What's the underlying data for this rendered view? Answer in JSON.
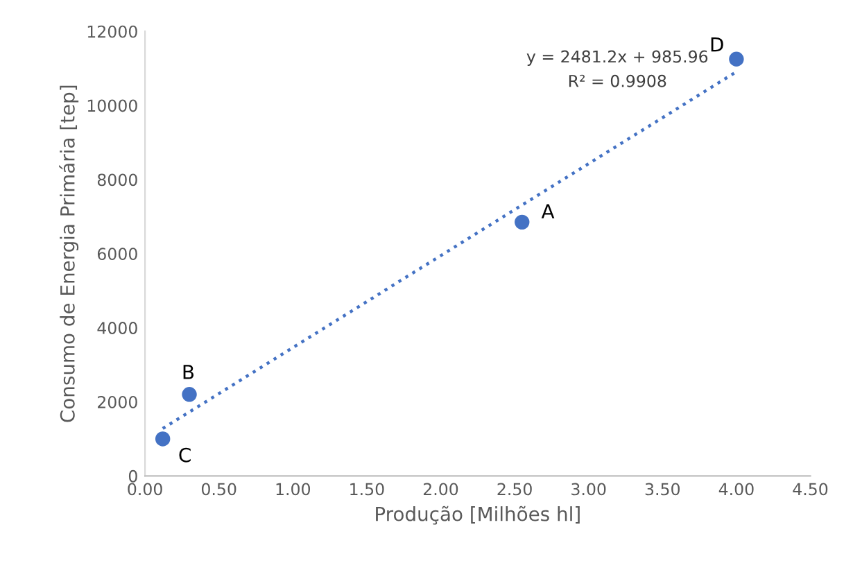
{
  "chart_data": {
    "type": "scatter",
    "xlabel": "Produção [Milhões hl]",
    "ylabel": "Consumo de Energia Primária [tep]",
    "xlim": [
      0,
      4.5
    ],
    "ylim": [
      0,
      12000
    ],
    "xticks": [
      {
        "value": 0,
        "label": "0.00"
      },
      {
        "value": 0.5,
        "label": "0.50"
      },
      {
        "value": 1,
        "label": "1.00"
      },
      {
        "value": 1.5,
        "label": "1.50"
      },
      {
        "value": 2,
        "label": "2.00"
      },
      {
        "value": 2.5,
        "label": "2.50"
      },
      {
        "value": 3,
        "label": "3.00"
      },
      {
        "value": 3.5,
        "label": "3.50"
      },
      {
        "value": 4,
        "label": "4.00"
      },
      {
        "value": 4.5,
        "label": "4.50"
      }
    ],
    "yticks": [
      0,
      2000,
      4000,
      6000,
      8000,
      10000,
      12000
    ],
    "grid": false,
    "legend": false,
    "series": [
      {
        "color": "#4472c4",
        "marker": "circle",
        "x": [
          0.12,
          0.3,
          2.55,
          4.0
        ],
        "values": [
          1000,
          2200,
          6850,
          11250
        ]
      },
      {
        "type": "line",
        "color": "#4472c4",
        "line_style": "dotted",
        "marker": "none",
        "x": [
          0.12,
          4.0
        ],
        "values": [
          1280,
          10910
        ]
      }
    ],
    "annotations": [
      {
        "text": "C",
        "x": 0.12,
        "y": 1000
      },
      {
        "text": "B",
        "x": 0.3,
        "y": 2200
      },
      {
        "text": "A",
        "x": 2.55,
        "y": 6850
      },
      {
        "text": "D",
        "x": 4.0,
        "y": 11250
      },
      "y = 2481.2x + 985.96",
      "R² = 0.9908"
    ]
  }
}
